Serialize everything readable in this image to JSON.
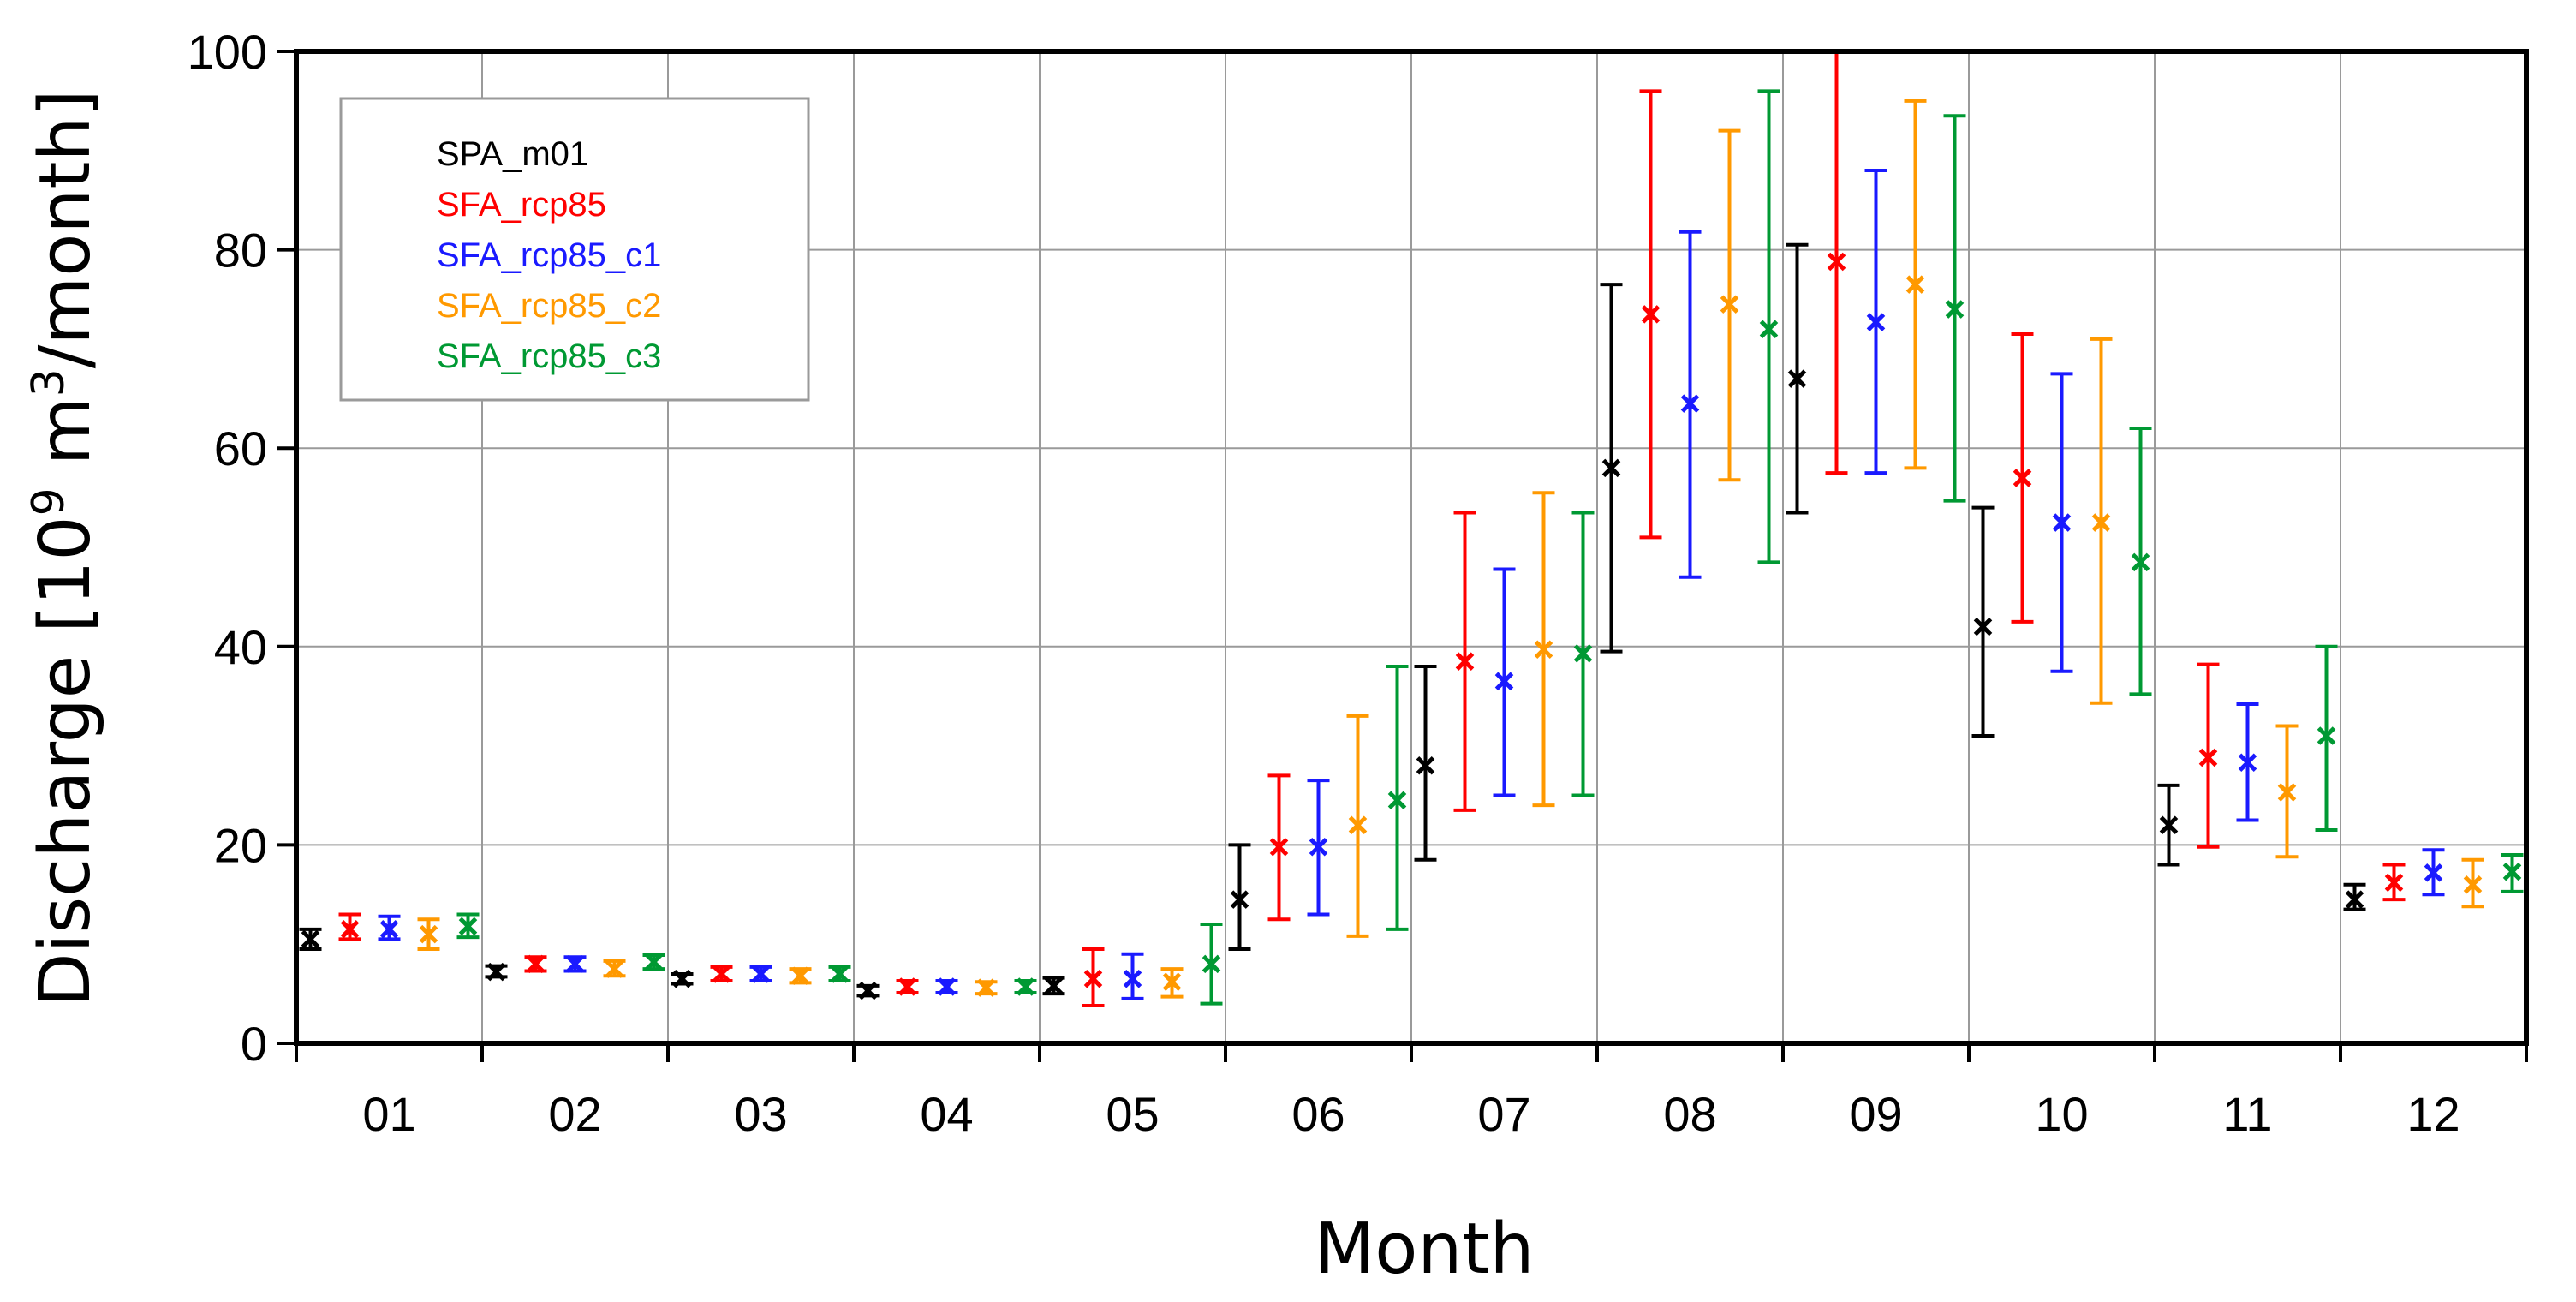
{
  "chart_data": {
    "type": "scatter",
    "subtype": "error-bar",
    "categories": [
      "01",
      "02",
      "03",
      "04",
      "05",
      "06",
      "07",
      "08",
      "09",
      "10",
      "11",
      "12"
    ],
    "xlabel": "Month",
    "ylabel": {
      "prefix": "Discharge [10",
      "sup1": "9",
      "mid": " m",
      "sup2": "3",
      "suffix": "/month]"
    },
    "ylim": [
      0,
      100
    ],
    "yticks": [
      "0",
      "20",
      "40",
      "60",
      "80",
      "100"
    ],
    "grid": true,
    "legend_position": "top-left",
    "series": [
      {
        "name": "SPA_m01",
        "color": "#000000",
        "values": [
          10.5,
          7.2,
          6.5,
          5.3,
          5.8,
          14.5,
          28,
          58,
          67,
          42,
          22,
          14.5
        ],
        "lower": [
          9.5,
          6.7,
          6.0,
          4.8,
          5.0,
          9.5,
          18.5,
          39.5,
          53.5,
          31,
          18,
          13.5
        ],
        "upper": [
          11.5,
          7.8,
          7.0,
          5.8,
          6.6,
          20,
          38,
          76.5,
          80.5,
          54,
          26,
          16
        ]
      },
      {
        "name": "SFA_rcp85",
        "color": "#ff0000",
        "values": [
          11.5,
          8,
          7,
          5.7,
          6.5,
          19.8,
          38.5,
          73.5,
          78.8,
          57,
          28.8,
          16.2
        ],
        "lower": [
          10.5,
          7.3,
          6.3,
          5.1,
          3.8,
          12.5,
          23.5,
          51,
          57.5,
          42.5,
          19.8,
          14.5
        ],
        "upper": [
          13,
          8.7,
          7.7,
          6.3,
          9.5,
          27,
          53.5,
          96,
          100,
          71.5,
          38.2,
          18
        ]
      },
      {
        "name": "SFA_rcp85_c1",
        "color": "#1a1aff",
        "values": [
          11.5,
          8,
          7,
          5.7,
          6.5,
          19.8,
          36.5,
          64.5,
          72.7,
          52.5,
          28.3,
          17.2
        ],
        "lower": [
          10.5,
          7.3,
          6.3,
          5.1,
          4.5,
          13,
          25,
          47,
          57.5,
          37.5,
          22.5,
          15
        ],
        "upper": [
          12.8,
          8.7,
          7.7,
          6.3,
          9,
          26.5,
          47.8,
          81.8,
          88,
          67.5,
          34.2,
          19.5
        ]
      },
      {
        "name": "SFA_rcp85_c2",
        "color": "#ff9900",
        "values": [
          11,
          7.5,
          6.8,
          5.6,
          6.2,
          22,
          39.7,
          74.5,
          76.5,
          52.5,
          25.3,
          16
        ],
        "lower": [
          9.5,
          6.8,
          6.1,
          5.0,
          4.7,
          10.8,
          24,
          56.8,
          58,
          34.3,
          18.8,
          13.8
        ],
        "upper": [
          12.5,
          8.3,
          7.5,
          6.2,
          7.5,
          33,
          55.5,
          92,
          95,
          71,
          32,
          18.5
        ]
      },
      {
        "name": "SFA_rcp85_c3",
        "color": "#009933",
        "values": [
          11.8,
          8.2,
          7,
          5.7,
          8,
          24.5,
          39.3,
          72,
          74,
          48.5,
          31,
          17.3
        ],
        "lower": [
          10.7,
          7.5,
          6.3,
          5.1,
          4,
          11.5,
          25,
          48.5,
          54.7,
          35.2,
          21.5,
          15.3
        ],
        "upper": [
          13,
          8.9,
          7.7,
          6.3,
          12,
          38,
          53.5,
          96,
          93.5,
          62,
          40,
          19
        ]
      }
    ]
  }
}
